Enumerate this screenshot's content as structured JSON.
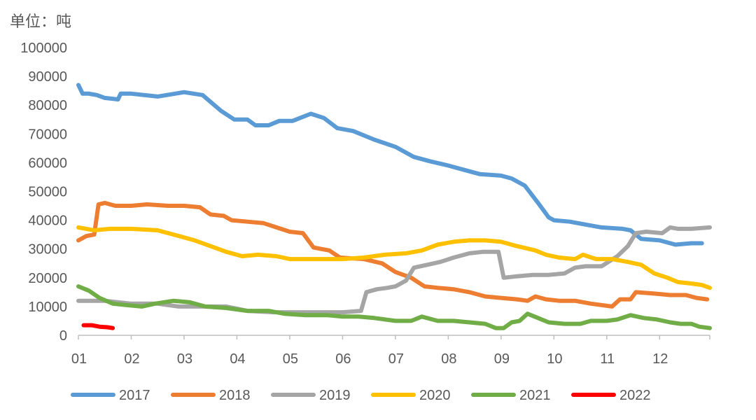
{
  "chart_data": {
    "type": "line",
    "unit_label": "单位：吨",
    "title": "",
    "xlabel": "",
    "ylabel": "",
    "ylim": [
      0,
      100000
    ],
    "yticks": [
      0,
      10000,
      20000,
      30000,
      40000,
      50000,
      60000,
      70000,
      80000,
      90000,
      100000
    ],
    "yticks_text": [
      "0",
      "10000",
      "20000",
      "30000",
      "40000",
      "50000",
      "60000",
      "70000",
      "80000",
      "90000",
      "100000"
    ],
    "xlim": [
      1,
      12.95
    ],
    "xticks": [
      1,
      2,
      3,
      4,
      5,
      6,
      7,
      8,
      9,
      10,
      11,
      12
    ],
    "xticks_text": [
      "01",
      "02",
      "03",
      "04",
      "05",
      "06",
      "07",
      "08",
      "09",
      "10",
      "11",
      "12"
    ],
    "grid": false,
    "legend_position": "bottom",
    "series": [
      {
        "name": "2017",
        "color": "#5B9BD5",
        "points": [
          [
            1.0,
            87000
          ],
          [
            1.08,
            84000
          ],
          [
            1.2,
            84000
          ],
          [
            1.35,
            83500
          ],
          [
            1.5,
            82500
          ],
          [
            1.75,
            82000
          ],
          [
            1.8,
            84000
          ],
          [
            2.0,
            84000
          ],
          [
            2.5,
            83000
          ],
          [
            3.0,
            84500
          ],
          [
            3.35,
            83500
          ],
          [
            3.7,
            78000
          ],
          [
            3.95,
            75000
          ],
          [
            4.2,
            75000
          ],
          [
            4.35,
            73000
          ],
          [
            4.6,
            73000
          ],
          [
            4.8,
            74500
          ],
          [
            5.05,
            74500
          ],
          [
            5.4,
            77000
          ],
          [
            5.65,
            75500
          ],
          [
            5.9,
            72000
          ],
          [
            6.2,
            71000
          ],
          [
            6.6,
            68000
          ],
          [
            7.0,
            65500
          ],
          [
            7.35,
            62000
          ],
          [
            7.65,
            60500
          ],
          [
            8.0,
            59000
          ],
          [
            8.3,
            57500
          ],
          [
            8.6,
            56000
          ],
          [
            9.0,
            55500
          ],
          [
            9.2,
            54500
          ],
          [
            9.45,
            52000
          ],
          [
            9.7,
            46000
          ],
          [
            9.9,
            41000
          ],
          [
            10.0,
            40000
          ],
          [
            10.3,
            39500
          ],
          [
            10.6,
            38500
          ],
          [
            10.9,
            37500
          ],
          [
            11.3,
            37000
          ],
          [
            11.45,
            36500
          ],
          [
            11.65,
            33500
          ],
          [
            12.0,
            33000
          ],
          [
            12.3,
            31500
          ],
          [
            12.6,
            32000
          ],
          [
            12.8,
            32000
          ]
        ]
      },
      {
        "name": "2018",
        "color": "#ED7D31",
        "points": [
          [
            1.0,
            33000
          ],
          [
            1.15,
            34500
          ],
          [
            1.3,
            35000
          ],
          [
            1.38,
            45500
          ],
          [
            1.5,
            46000
          ],
          [
            1.7,
            45000
          ],
          [
            2.0,
            45000
          ],
          [
            2.3,
            45500
          ],
          [
            2.7,
            45000
          ],
          [
            3.0,
            45000
          ],
          [
            3.3,
            44500
          ],
          [
            3.5,
            42000
          ],
          [
            3.75,
            41500
          ],
          [
            3.9,
            40000
          ],
          [
            4.2,
            39500
          ],
          [
            4.5,
            39000
          ],
          [
            4.75,
            37500
          ],
          [
            5.0,
            36000
          ],
          [
            5.25,
            35500
          ],
          [
            5.45,
            30500
          ],
          [
            5.75,
            29500
          ],
          [
            5.95,
            27000
          ],
          [
            6.4,
            26500
          ],
          [
            6.75,
            25000
          ],
          [
            7.0,
            22000
          ],
          [
            7.3,
            20000
          ],
          [
            7.55,
            17000
          ],
          [
            7.8,
            16500
          ],
          [
            8.1,
            16000
          ],
          [
            8.4,
            15000
          ],
          [
            8.7,
            13500
          ],
          [
            9.0,
            13000
          ],
          [
            9.3,
            12500
          ],
          [
            9.5,
            12000
          ],
          [
            9.65,
            13500
          ],
          [
            9.85,
            12500
          ],
          [
            10.1,
            12000
          ],
          [
            10.4,
            12000
          ],
          [
            10.7,
            11000
          ],
          [
            10.9,
            10500
          ],
          [
            11.1,
            10000
          ],
          [
            11.25,
            12500
          ],
          [
            11.45,
            12500
          ],
          [
            11.55,
            15000
          ],
          [
            11.9,
            14500
          ],
          [
            12.2,
            14000
          ],
          [
            12.5,
            14000
          ],
          [
            12.7,
            13000
          ],
          [
            12.9,
            12500
          ]
        ]
      },
      {
        "name": "2019",
        "color": "#A5A5A5",
        "points": [
          [
            1.0,
            12000
          ],
          [
            1.5,
            12000
          ],
          [
            2.0,
            11000
          ],
          [
            2.5,
            11000
          ],
          [
            2.9,
            10000
          ],
          [
            3.3,
            10000
          ],
          [
            3.8,
            10000
          ],
          [
            4.2,
            8500
          ],
          [
            4.7,
            8000
          ],
          [
            5.0,
            8000
          ],
          [
            5.5,
            8000
          ],
          [
            6.0,
            8000
          ],
          [
            6.35,
            8500
          ],
          [
            6.45,
            15000
          ],
          [
            6.65,
            16000
          ],
          [
            6.85,
            16500
          ],
          [
            7.0,
            17000
          ],
          [
            7.2,
            19000
          ],
          [
            7.35,
            23500
          ],
          [
            7.6,
            24500
          ],
          [
            7.85,
            25500
          ],
          [
            8.1,
            27000
          ],
          [
            8.4,
            28500
          ],
          [
            8.65,
            29000
          ],
          [
            8.95,
            29000
          ],
          [
            9.05,
            20000
          ],
          [
            9.3,
            20500
          ],
          [
            9.6,
            21000
          ],
          [
            9.9,
            21000
          ],
          [
            10.2,
            21500
          ],
          [
            10.4,
            23500
          ],
          [
            10.6,
            24000
          ],
          [
            10.9,
            24000
          ],
          [
            11.2,
            27500
          ],
          [
            11.4,
            31000
          ],
          [
            11.55,
            35500
          ],
          [
            11.75,
            36000
          ],
          [
            12.05,
            35500
          ],
          [
            12.2,
            37500
          ],
          [
            12.35,
            37000
          ],
          [
            12.6,
            37000
          ],
          [
            12.95,
            37500
          ]
        ]
      },
      {
        "name": "2020",
        "color": "#FFC000",
        "points": [
          [
            1.0,
            37500
          ],
          [
            1.3,
            36500
          ],
          [
            1.6,
            37000
          ],
          [
            2.0,
            37000
          ],
          [
            2.5,
            36500
          ],
          [
            2.8,
            35000
          ],
          [
            3.2,
            33000
          ],
          [
            3.5,
            31000
          ],
          [
            3.8,
            29000
          ],
          [
            4.1,
            27500
          ],
          [
            4.4,
            28000
          ],
          [
            4.75,
            27500
          ],
          [
            5.0,
            26500
          ],
          [
            5.3,
            26500
          ],
          [
            5.6,
            26500
          ],
          [
            6.0,
            26500
          ],
          [
            6.4,
            27000
          ],
          [
            6.8,
            28000
          ],
          [
            7.2,
            28500
          ],
          [
            7.5,
            29500
          ],
          [
            7.8,
            31500
          ],
          [
            8.1,
            32500
          ],
          [
            8.4,
            33000
          ],
          [
            8.7,
            33000
          ],
          [
            9.0,
            32500
          ],
          [
            9.3,
            31000
          ],
          [
            9.65,
            29500
          ],
          [
            9.85,
            28000
          ],
          [
            10.1,
            27000
          ],
          [
            10.4,
            26500
          ],
          [
            10.55,
            28000
          ],
          [
            10.8,
            26500
          ],
          [
            11.1,
            26500
          ],
          [
            11.4,
            25500
          ],
          [
            11.65,
            24500
          ],
          [
            11.9,
            21500
          ],
          [
            12.15,
            20000
          ],
          [
            12.35,
            18500
          ],
          [
            12.6,
            18000
          ],
          [
            12.8,
            17500
          ],
          [
            12.95,
            16500
          ]
        ]
      },
      {
        "name": "2021",
        "color": "#70AD47",
        "points": [
          [
            1.0,
            17000
          ],
          [
            1.2,
            15500
          ],
          [
            1.4,
            13000
          ],
          [
            1.65,
            11000
          ],
          [
            1.9,
            10500
          ],
          [
            2.2,
            10000
          ],
          [
            2.45,
            11000
          ],
          [
            2.8,
            12000
          ],
          [
            3.1,
            11500
          ],
          [
            3.4,
            10000
          ],
          [
            3.8,
            9500
          ],
          [
            4.2,
            8500
          ],
          [
            4.6,
            8500
          ],
          [
            4.9,
            7500
          ],
          [
            5.3,
            7000
          ],
          [
            5.7,
            7000
          ],
          [
            6.0,
            6500
          ],
          [
            6.3,
            6500
          ],
          [
            6.6,
            6000
          ],
          [
            7.0,
            5000
          ],
          [
            7.3,
            5000
          ],
          [
            7.5,
            6500
          ],
          [
            7.8,
            5000
          ],
          [
            8.1,
            5000
          ],
          [
            8.4,
            4500
          ],
          [
            8.7,
            4000
          ],
          [
            8.9,
            2500
          ],
          [
            9.05,
            2500
          ],
          [
            9.2,
            4500
          ],
          [
            9.35,
            5000
          ],
          [
            9.5,
            7500
          ],
          [
            9.7,
            6000
          ],
          [
            9.9,
            4500
          ],
          [
            10.2,
            4000
          ],
          [
            10.5,
            4000
          ],
          [
            10.7,
            5000
          ],
          [
            11.0,
            5000
          ],
          [
            11.2,
            5500
          ],
          [
            11.45,
            7000
          ],
          [
            11.7,
            6000
          ],
          [
            11.95,
            5500
          ],
          [
            12.2,
            4500
          ],
          [
            12.4,
            4000
          ],
          [
            12.6,
            4000
          ],
          [
            12.75,
            3000
          ],
          [
            12.95,
            2500
          ]
        ]
      },
      {
        "name": "2022",
        "color": "#FF0000",
        "points": [
          [
            1.1,
            3500
          ],
          [
            1.25,
            3500
          ],
          [
            1.4,
            3000
          ],
          [
            1.55,
            2800
          ],
          [
            1.65,
            2500
          ]
        ]
      }
    ]
  }
}
